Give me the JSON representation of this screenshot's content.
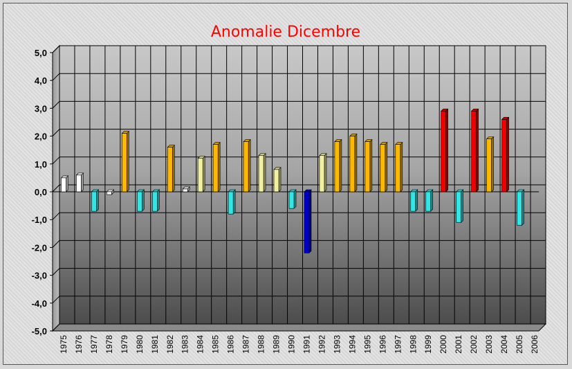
{
  "chart_data": {
    "type": "bar",
    "title": "Anomalie Dicembre",
    "xlabel": "",
    "ylabel": "",
    "ylim": [
      -5,
      5
    ],
    "yticks": [
      "5,0",
      "4,0",
      "3,0",
      "2,0",
      "1,0",
      "0,0",
      "-1,0",
      "-2,0",
      "-3,0",
      "-4,0",
      "-5,0"
    ],
    "categories": [
      "1975",
      "1976",
      "1977",
      "1978",
      "1979",
      "1980",
      "1981",
      "1982",
      "1983",
      "1984",
      "1985",
      "1986",
      "1987",
      "1988",
      "1989",
      "1990",
      "1991",
      "1992",
      "1993",
      "1994",
      "1995",
      "1996",
      "1997",
      "1998",
      "1999",
      "2000",
      "2001",
      "2002",
      "2003",
      "2004",
      "2005",
      "2006"
    ],
    "values": [
      0.5,
      0.6,
      -0.7,
      -0.1,
      2.1,
      -0.7,
      -0.7,
      1.6,
      0.1,
      1.2,
      1.7,
      -0.8,
      1.8,
      1.3,
      0.8,
      -0.6,
      -2.2,
      1.3,
      1.8,
      2.0,
      1.8,
      1.7,
      1.7,
      -0.7,
      -0.7,
      2.9,
      -1.1,
      2.9,
      1.9,
      2.6,
      -1.2,
      0
    ],
    "grid": true,
    "legend": "none",
    "colors": {
      "very_negative": "#0000cc",
      "negative": "#33e6e6",
      "slightly_negative": "#ffffff",
      "slight_positive": "#ffffff",
      "mild_positive": "#f0f0a0",
      "positive": "#ffb800",
      "very_positive": "#ee0000",
      "title": "#ff0000"
    }
  }
}
